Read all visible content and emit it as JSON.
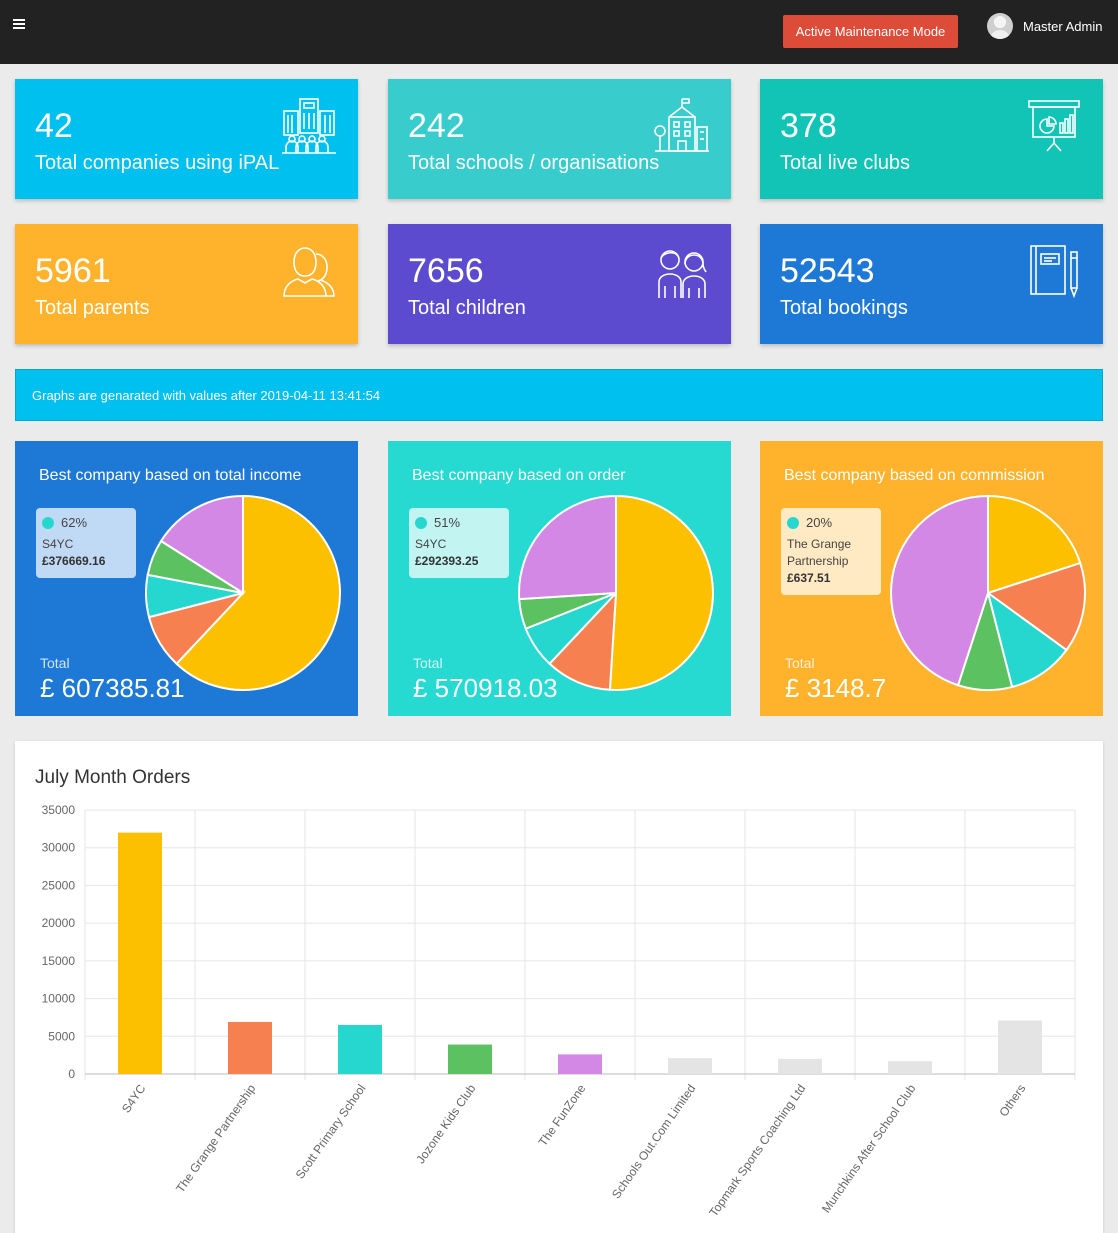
{
  "topbar": {
    "maintenance_label": "Active Maintenance Mode",
    "user_name": "Master Admin"
  },
  "colors": {
    "companies": "#00c0ef",
    "schools": "#39cccc",
    "clubs": "#11c4b5",
    "parents": "#ffb22b",
    "children": "#5d4bcf",
    "bookings": "#1e78d6",
    "income_bg": "#1e78d6",
    "order_bg": "#26d9d1",
    "commission_bg": "#ffb22b"
  },
  "stats": [
    {
      "value": "42",
      "label": "Total companies using iPAL",
      "icon": "office-building-icon"
    },
    {
      "value": "242",
      "label": "Total schools / organisations",
      "icon": "school-building-icon"
    },
    {
      "value": "378",
      "label": "Total live clubs",
      "icon": "presentation-board-icon"
    },
    {
      "value": "5961",
      "label": "Total parents",
      "icon": "parents-icon"
    },
    {
      "value": "7656",
      "label": "Total children",
      "icon": "children-icon"
    },
    {
      "value": "52543",
      "label": "Total bookings",
      "icon": "notebook-icon"
    }
  ],
  "info": {
    "text": "Graphs are genarated with values after 2019-04-11 13:41:54"
  },
  "pies": [
    {
      "title": "Best company based on total income",
      "tooltip": {
        "pct": "62%",
        "name_lines": [
          "S4YC"
        ],
        "value": "£376669.16"
      },
      "total_label": "Total",
      "total": "£ 607385.81",
      "chart_data": {
        "type": "pie",
        "slices": [
          {
            "value": 62,
            "color": "#fcc000"
          },
          {
            "value": 9,
            "color": "#f6804f"
          },
          {
            "value": 7,
            "color": "#26d7d0"
          },
          {
            "value": 6,
            "color": "#5cc261"
          },
          {
            "value": 16,
            "color": "#d488e6"
          }
        ]
      }
    },
    {
      "title": "Best company based on order",
      "tooltip": {
        "pct": "51%",
        "name_lines": [
          "S4YC"
        ],
        "value": "£292393.25"
      },
      "total_label": "Total",
      "total": "£ 570918.03",
      "chart_data": {
        "type": "pie",
        "slices": [
          {
            "value": 51,
            "color": "#fcc000"
          },
          {
            "value": 11,
            "color": "#f6804f"
          },
          {
            "value": 7,
            "color": "#26d7d0"
          },
          {
            "value": 5,
            "color": "#5cc261"
          },
          {
            "value": 26,
            "color": "#d488e6"
          }
        ]
      }
    },
    {
      "title": "Best company based on commission",
      "tooltip": {
        "pct": "20%",
        "name_lines": [
          "The Grange",
          "Partnership"
        ],
        "value": "£637.51"
      },
      "total_label": "Total",
      "total": "£ 3148.7",
      "chart_data": {
        "type": "pie",
        "slices": [
          {
            "value": 20,
            "color": "#fcc000"
          },
          {
            "value": 15,
            "color": "#f6804f"
          },
          {
            "value": 11,
            "color": "#26d7d0"
          },
          {
            "value": 9,
            "color": "#5cc261"
          },
          {
            "value": 45,
            "color": "#d488e6"
          }
        ]
      }
    }
  ],
  "bar_chart": {
    "title": "July Month Orders",
    "chart_data": {
      "type": "bar",
      "ylim": [
        0,
        35000
      ],
      "yticks": [
        0,
        5000,
        10000,
        15000,
        20000,
        25000,
        30000,
        35000
      ],
      "categories": [
        "S4YC",
        "The Grange Partnership",
        "Scott Primary School",
        "Jozone Kids Club",
        "The FunZone",
        "Schools Out.Com Limited",
        "Topmark Sports Coaching Ltd",
        "Munchkins After School Club",
        "Others"
      ],
      "values": [
        32000,
        6900,
        6500,
        3900,
        2600,
        2100,
        2000,
        1700,
        7100
      ],
      "colors": [
        "#fcc000",
        "#f6804f",
        "#26d7d0",
        "#5cc261",
        "#d488e6",
        "#e4e4e4",
        "#e4e4e4",
        "#e4e4e4",
        "#e4e4e4"
      ]
    }
  }
}
